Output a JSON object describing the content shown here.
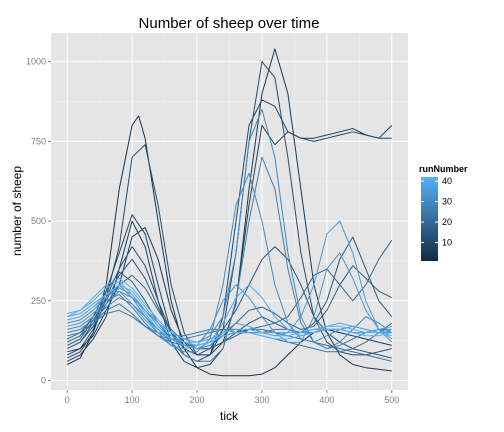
{
  "chart_data": {
    "type": "line",
    "title": "Number of sheep over time",
    "xlabel": "tick",
    "ylabel": "number of sheep",
    "xlim": [
      -25,
      525
    ],
    "ylim": [
      -30,
      1090
    ],
    "x_ticks": [
      0,
      100,
      200,
      300,
      400,
      500
    ],
    "x_tick_labels": [
      "0",
      "100",
      "200",
      "300",
      "400",
      "500"
    ],
    "y_ticks": [
      0,
      250,
      500,
      750,
      1000
    ],
    "y_tick_labels": [
      "0",
      "250",
      "500",
      "750",
      "1000"
    ],
    "grid": true,
    "legend": {
      "title": "runNumber",
      "position": "right",
      "range": [
        1,
        42
      ],
      "ticks": [
        10,
        20,
        30,
        40
      ],
      "tick_labels": [
        "10",
        "20",
        "30",
        "40"
      ],
      "low_color": "#132B43",
      "high_color": "#56B1F7"
    },
    "series": [
      {
        "name": "run 3",
        "run": 3,
        "x": [
          0,
          20,
          40,
          60,
          80,
          100,
          110,
          120,
          140,
          160,
          180,
          200,
          220,
          240,
          260,
          280,
          300,
          320,
          340,
          360,
          380,
          400,
          420,
          440,
          460,
          480,
          500
        ],
        "values": [
          50,
          70,
          150,
          300,
          600,
          800,
          830,
          760,
          500,
          250,
          100,
          40,
          20,
          15,
          15,
          15,
          20,
          40,
          80,
          120,
          150,
          160,
          150,
          140,
          130,
          120,
          110
        ]
      },
      {
        "name": "run 5",
        "run": 5,
        "x": [
          0,
          20,
          40,
          60,
          80,
          100,
          120,
          140,
          160,
          180,
          200,
          220,
          240,
          260,
          280,
          300,
          320,
          340,
          360,
          380,
          400,
          420,
          440,
          460,
          480,
          500
        ],
        "values": [
          90,
          100,
          140,
          220,
          300,
          450,
          480,
          380,
          220,
          120,
          80,
          80,
          120,
          240,
          600,
          900,
          1040,
          900,
          600,
          300,
          150,
          80,
          50,
          40,
          35,
          30
        ]
      },
      {
        "name": "run 7",
        "run": 7,
        "x": [
          0,
          20,
          40,
          60,
          80,
          100,
          120,
          140,
          160,
          180,
          200,
          220,
          240,
          260,
          280,
          300,
          320,
          340,
          360,
          380,
          400,
          420,
          440,
          460,
          480,
          500
        ],
        "values": [
          60,
          80,
          130,
          200,
          350,
          500,
          420,
          250,
          120,
          60,
          40,
          50,
          100,
          250,
          550,
          800,
          740,
          780,
          760,
          760,
          770,
          780,
          790,
          770,
          760,
          800
        ]
      },
      {
        "name": "run 9",
        "run": 9,
        "x": [
          0,
          20,
          40,
          60,
          80,
          100,
          120,
          140,
          160,
          180,
          200,
          220,
          240,
          260,
          280,
          300,
          320,
          340,
          360,
          380,
          400,
          420,
          440,
          460,
          480,
          500
        ],
        "values": [
          80,
          100,
          160,
          280,
          400,
          520,
          460,
          300,
          150,
          80,
          60,
          80,
          200,
          500,
          800,
          880,
          860,
          780,
          760,
          750,
          760,
          770,
          780,
          770,
          760,
          760
        ]
      },
      {
        "name": "run 11",
        "run": 11,
        "x": [
          0,
          20,
          40,
          60,
          80,
          100,
          120,
          140,
          160,
          180,
          200,
          220,
          240,
          260,
          280,
          300,
          320,
          340,
          360,
          380,
          400,
          420,
          440,
          460,
          480,
          500
        ],
        "values": [
          70,
          90,
          150,
          260,
          420,
          700,
          740,
          550,
          300,
          150,
          80,
          80,
          160,
          400,
          750,
          1000,
          950,
          700,
          400,
          200,
          120,
          90,
          80,
          80,
          90,
          100
        ]
      },
      {
        "name": "run 13",
        "run": 13,
        "x": [
          0,
          20,
          40,
          60,
          80,
          100,
          120,
          140,
          160,
          180,
          200,
          220,
          240,
          260,
          280,
          300,
          320,
          340,
          360,
          380,
          400,
          420,
          440,
          460,
          480,
          500
        ],
        "values": [
          100,
          120,
          180,
          260,
          350,
          420,
          360,
          250,
          150,
          100,
          80,
          100,
          160,
          220,
          300,
          380,
          420,
          380,
          300,
          200,
          150,
          120,
          100,
          90,
          80,
          70
        ]
      },
      {
        "name": "run 15",
        "run": 15,
        "x": [
          0,
          20,
          40,
          60,
          80,
          100,
          120,
          140,
          160,
          180,
          200,
          220,
          240,
          260,
          280,
          300,
          320,
          340,
          360,
          380,
          400,
          420,
          440,
          460,
          480,
          500
        ],
        "values": [
          110,
          130,
          190,
          250,
          330,
          380,
          320,
          230,
          150,
          110,
          100,
          100,
          120,
          150,
          180,
          200,
          180,
          160,
          150,
          180,
          250,
          380,
          450,
          350,
          250,
          200
        ]
      },
      {
        "name": "run 17",
        "run": 17,
        "x": [
          0,
          20,
          40,
          60,
          80,
          100,
          120,
          140,
          160,
          180,
          200,
          220,
          240,
          260,
          280,
          300,
          320,
          340,
          360,
          380,
          400,
          420,
          440,
          460,
          480,
          500
        ],
        "values": [
          120,
          140,
          200,
          280,
          340,
          310,
          250,
          180,
          130,
          110,
          100,
          110,
          140,
          180,
          220,
          230,
          210,
          180,
          160,
          170,
          220,
          300,
          360,
          320,
          280,
          260
        ]
      },
      {
        "name": "run 19",
        "run": 19,
        "x": [
          0,
          20,
          40,
          60,
          80,
          100,
          120,
          140,
          160,
          180,
          200,
          220,
          240,
          260,
          280,
          300,
          320,
          340,
          360,
          380,
          400,
          420,
          440,
          460,
          480,
          500
        ],
        "values": [
          100,
          120,
          170,
          240,
          300,
          330,
          290,
          220,
          160,
          120,
          100,
          100,
          120,
          140,
          160,
          170,
          180,
          200,
          260,
          330,
          350,
          300,
          250,
          300,
          380,
          440
        ]
      },
      {
        "name": "run 21",
        "run": 21,
        "x": [
          0,
          20,
          40,
          60,
          80,
          100,
          120,
          140,
          160,
          180,
          200,
          220,
          240,
          260,
          280,
          300,
          320,
          340,
          360,
          380,
          400,
          420,
          440,
          460,
          480,
          500
        ],
        "values": [
          130,
          150,
          200,
          250,
          270,
          230,
          180,
          140,
          120,
          110,
          110,
          120,
          140,
          150,
          160,
          160,
          150,
          140,
          130,
          120,
          110,
          100,
          90,
          80,
          70,
          60
        ]
      },
      {
        "name": "run 23",
        "run": 23,
        "x": [
          0,
          20,
          40,
          60,
          80,
          100,
          120,
          140,
          160,
          180,
          200,
          220,
          240,
          260,
          280,
          300,
          320,
          340,
          360,
          380,
          400,
          420,
          440,
          460,
          480,
          500
        ],
        "values": [
          120,
          140,
          180,
          220,
          240,
          210,
          170,
          140,
          130,
          130,
          140,
          150,
          160,
          160,
          150,
          140,
          130,
          120,
          110,
          100,
          90,
          90,
          100,
          120,
          150,
          180
        ]
      },
      {
        "name": "run 25",
        "run": 25,
        "x": [
          0,
          20,
          40,
          60,
          80,
          100,
          120,
          140,
          160,
          180,
          200,
          220,
          240,
          260,
          280,
          300,
          320,
          340,
          360,
          380,
          400,
          420,
          440,
          460,
          480,
          500
        ],
        "values": [
          140,
          150,
          180,
          210,
          220,
          200,
          170,
          150,
          140,
          140,
          150,
          160,
          160,
          150,
          150,
          150,
          160,
          160,
          150,
          150,
          160,
          160,
          150,
          150,
          160,
          160
        ]
      },
      {
        "name": "run 27",
        "run": 27,
        "x": [
          0,
          20,
          40,
          60,
          80,
          100,
          120,
          140,
          160,
          180,
          200,
          220,
          240,
          260,
          280,
          300,
          320,
          340,
          360,
          380,
          400,
          420,
          440,
          460,
          480,
          500
        ],
        "values": [
          150,
          160,
          190,
          230,
          260,
          240,
          200,
          160,
          120,
          80,
          60,
          60,
          100,
          250,
          500,
          700,
          600,
          350,
          180,
          120,
          100,
          110,
          130,
          150,
          160,
          150
        ]
      },
      {
        "name": "run 29",
        "run": 29,
        "x": [
          0,
          20,
          40,
          60,
          80,
          100,
          120,
          140,
          160,
          180,
          200,
          220,
          240,
          260,
          280,
          300,
          320,
          340,
          360,
          380,
          400,
          420,
          440,
          460,
          480,
          500
        ],
        "values": [
          160,
          170,
          200,
          240,
          280,
          260,
          220,
          180,
          150,
          130,
          120,
          140,
          200,
          400,
          750,
          850,
          700,
          400,
          200,
          120,
          100,
          120,
          160,
          200,
          180,
          150
        ]
      },
      {
        "name": "run 31",
        "run": 31,
        "x": [
          0,
          20,
          40,
          60,
          80,
          100,
          120,
          140,
          160,
          180,
          200,
          220,
          240,
          260,
          280,
          300,
          320,
          340,
          360,
          380,
          400,
          420,
          440,
          460,
          480,
          500
        ],
        "values": [
          180,
          190,
          220,
          260,
          300,
          260,
          200,
          150,
          110,
          90,
          90,
          130,
          300,
          550,
          650,
          500,
          300,
          180,
          130,
          120,
          140,
          160,
          170,
          160,
          150,
          150
        ]
      },
      {
        "name": "run 33",
        "run": 33,
        "x": [
          0,
          20,
          40,
          60,
          80,
          100,
          120,
          140,
          160,
          180,
          200,
          220,
          240,
          260,
          280,
          300,
          320,
          340,
          360,
          380,
          400,
          420,
          440,
          460,
          480,
          500
        ],
        "values": [
          170,
          180,
          210,
          250,
          270,
          230,
          180,
          140,
          110,
          100,
          110,
          160,
          250,
          300,
          260,
          200,
          150,
          120,
          120,
          200,
          350,
          400,
          320,
          220,
          160,
          130
        ]
      },
      {
        "name": "run 35",
        "run": 35,
        "x": [
          0,
          20,
          40,
          60,
          80,
          100,
          120,
          140,
          160,
          180,
          200,
          220,
          240,
          260,
          280,
          300,
          320,
          340,
          360,
          380,
          400,
          420,
          440,
          460,
          480,
          500
        ],
        "values": [
          190,
          200,
          230,
          260,
          290,
          270,
          220,
          170,
          130,
          110,
          100,
          110,
          150,
          180,
          170,
          150,
          140,
          150,
          200,
          300,
          460,
          500,
          400,
          250,
          160,
          120
        ]
      },
      {
        "name": "run 37",
        "run": 37,
        "x": [
          0,
          20,
          40,
          60,
          80,
          100,
          120,
          140,
          160,
          180,
          200,
          220,
          240,
          260,
          280,
          300,
          320,
          340,
          360,
          380,
          400,
          420,
          440,
          460,
          480,
          500
        ],
        "values": [
          200,
          210,
          240,
          270,
          280,
          240,
          190,
          150,
          130,
          120,
          120,
          130,
          140,
          150,
          150,
          150,
          150,
          150,
          150,
          160,
          160,
          160,
          150,
          150,
          160,
          170
        ]
      },
      {
        "name": "run 39",
        "run": 39,
        "x": [
          0,
          20,
          40,
          60,
          80,
          100,
          120,
          140,
          160,
          180,
          200,
          220,
          240,
          260,
          280,
          300,
          320,
          340,
          360,
          380,
          400,
          420,
          440,
          460,
          480,
          500
        ],
        "values": [
          210,
          220,
          250,
          290,
          310,
          270,
          210,
          160,
          130,
          110,
          100,
          120,
          180,
          260,
          300,
          260,
          200,
          160,
          140,
          150,
          170,
          180,
          170,
          160,
          150,
          140
        ]
      },
      {
        "name": "run 41",
        "run": 41,
        "x": [
          0,
          20,
          40,
          60,
          80,
          100,
          120,
          140,
          160,
          180,
          200,
          220,
          240,
          260,
          280,
          300,
          320,
          340,
          360,
          380,
          400,
          420,
          440,
          460,
          480,
          500
        ],
        "values": [
          200,
          220,
          260,
          300,
          320,
          290,
          240,
          190,
          150,
          130,
          120,
          130,
          150,
          160,
          160,
          150,
          140,
          140,
          150,
          160,
          170,
          170,
          160,
          150,
          150,
          160
        ]
      },
      {
        "name": "run 42",
        "run": 42,
        "x": [
          0,
          20,
          40,
          60,
          80,
          100,
          120,
          140,
          160,
          180,
          200,
          220,
          240,
          260,
          280,
          300,
          320,
          340,
          360,
          380,
          400,
          420,
          440,
          460,
          480,
          500
        ],
        "values": [
          190,
          200,
          230,
          270,
          300,
          280,
          230,
          180,
          140,
          120,
          110,
          120,
          140,
          150,
          150,
          140,
          130,
          130,
          140,
          150,
          160,
          160,
          150,
          140,
          140,
          150
        ]
      }
    ]
  }
}
